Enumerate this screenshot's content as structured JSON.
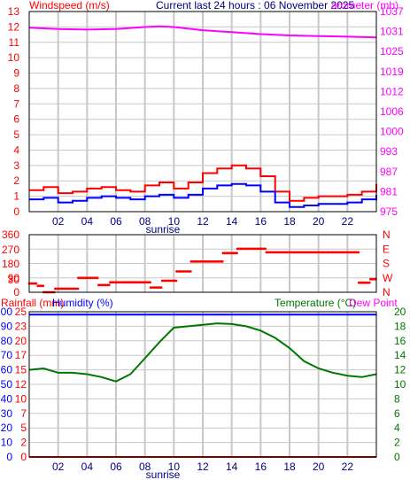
{
  "header": {
    "windspeed_label": "Windspeed (m/s)",
    "title": "Current last 24 hours : 06 November 2025",
    "barometer_label": "arometer (mb)"
  },
  "labels": {
    "sunrise": "sunrise",
    "rainfall": "Rainfall (mm)",
    "humidity": "Humidity (%)",
    "temperature": "Temperature (°C)",
    "dew_point": "Dew Point"
  },
  "colors": {
    "windspeed": "#ff0000",
    "gust": "#ff0000",
    "wind_avg": "#0000ff",
    "barometer": "#ff00ff",
    "direction": "#ff0000",
    "humidity": "#0000ff",
    "rainfall": "#ff0000",
    "temperature": "#007700",
    "grid": "#c8c8c8",
    "frame": "#000000"
  },
  "chart_data": [
    {
      "type": "line",
      "xlabel": "sunrise",
      "x_ticks": [
        "02",
        "04",
        "06",
        "08",
        "10",
        "12",
        "14",
        "16",
        "18",
        "20",
        "22"
      ],
      "y_left": {
        "label": "Windspeed (m/s)",
        "ylim": [
          0,
          13
        ],
        "ticks": [
          "0",
          "1",
          "2",
          "3",
          "4",
          "5",
          "6",
          "7",
          "8",
          "9",
          "10",
          "11",
          "12",
          "13"
        ]
      },
      "y_right": {
        "label": "arometer (mb)",
        "ylim": [
          975,
          1037
        ],
        "ticks": [
          "975",
          "981",
          "987",
          "993",
          "1000",
          "1006",
          "1012",
          "1019",
          "1025",
          "1031",
          "1037"
        ]
      },
      "grid": true,
      "series": [
        {
          "name": "Windspeed",
          "axis": "left",
          "color": "#ff0000",
          "hours": [
            0,
            1,
            2,
            3,
            4,
            5,
            6,
            7,
            8,
            9,
            10,
            11,
            12,
            13,
            14,
            15,
            16,
            17,
            18,
            19,
            20,
            21,
            22,
            23,
            24
          ],
          "values": [
            1.4,
            1.6,
            1.2,
            1.3,
            1.5,
            1.6,
            1.4,
            1.3,
            1.7,
            1.9,
            1.5,
            1.9,
            2.5,
            2.8,
            3.0,
            2.8,
            2.3,
            1.3,
            0.7,
            0.9,
            1.0,
            1.0,
            1.1,
            1.3,
            1.8
          ]
        },
        {
          "name": "Wind average",
          "axis": "left",
          "color": "#0000ff",
          "hours": [
            0,
            1,
            2,
            3,
            4,
            5,
            6,
            7,
            8,
            9,
            10,
            11,
            12,
            13,
            14,
            15,
            16,
            17,
            18,
            19,
            20,
            21,
            22,
            23,
            24
          ],
          "values": [
            0.8,
            0.9,
            0.6,
            0.7,
            0.9,
            1.0,
            0.9,
            0.8,
            1.0,
            1.1,
            0.9,
            1.1,
            1.5,
            1.7,
            1.8,
            1.7,
            1.3,
            0.6,
            0.3,
            0.4,
            0.5,
            0.5,
            0.6,
            0.8,
            1.1
          ]
        },
        {
          "name": "Barometer",
          "axis": "right",
          "color": "#ff00ff",
          "hours": [
            0,
            2,
            4,
            6,
            8,
            9,
            10,
            12,
            14,
            16,
            18,
            20,
            22,
            24
          ],
          "values": [
            1032,
            1031.6,
            1031.4,
            1031.6,
            1032.2,
            1032.4,
            1032.2,
            1031.2,
            1030.6,
            1030.0,
            1029.6,
            1029.4,
            1029.2,
            1029.0
          ]
        }
      ]
    },
    {
      "type": "scatter",
      "y_left": {
        "ylim": [
          0,
          360
        ],
        "ticks": [
          "0",
          "30",
          "90",
          "180",
          "270",
          "360"
        ]
      },
      "y_right": {
        "ticks": [
          "N",
          "E",
          "S",
          "W",
          "N"
        ]
      },
      "grid": true,
      "series": [
        {
          "name": "Wind direction",
          "color": "#ff0000",
          "segments": [
            {
              "from": 0.0,
              "to": 0.6,
              "value": 55
            },
            {
              "from": 0.6,
              "to": 1.0,
              "value": 40
            },
            {
              "from": 1.0,
              "to": 1.8,
              "value": 0
            },
            {
              "from": 1.8,
              "to": 3.4,
              "value": 22
            },
            {
              "from": 3.4,
              "to": 4.8,
              "value": 90
            },
            {
              "from": 4.8,
              "to": 5.6,
              "value": 45
            },
            {
              "from": 5.6,
              "to": 8.4,
              "value": 62
            },
            {
              "from": 8.4,
              "to": 9.2,
              "value": 30
            },
            {
              "from": 9.2,
              "to": 10.2,
              "value": 72
            },
            {
              "from": 10.2,
              "to": 11.2,
              "value": 130
            },
            {
              "from": 11.2,
              "to": 13.4,
              "value": 192
            },
            {
              "from": 13.4,
              "to": 14.4,
              "value": 245
            },
            {
              "from": 14.4,
              "to": 16.4,
              "value": 272
            },
            {
              "from": 16.4,
              "to": 22.8,
              "value": 250
            },
            {
              "from": 22.8,
              "to": 23.6,
              "value": 60
            },
            {
              "from": 23.6,
              "to": 24.0,
              "value": 82
            }
          ]
        }
      ]
    },
    {
      "type": "line",
      "xlabel": "sunrise",
      "x_ticks": [
        "02",
        "04",
        "06",
        "08",
        "10",
        "12",
        "14",
        "16",
        "18",
        "20",
        "22"
      ],
      "y_left": {
        "label": "Rainfall (mm)",
        "ylim": [
          0,
          25
        ],
        "ticks": [
          "0",
          "2",
          "5",
          "7",
          "10",
          "12",
          "15",
          "17",
          "20",
          "23",
          "25"
        ]
      },
      "y_left2": {
        "label": "Humidity (%)",
        "ylim": [
          0,
          100
        ],
        "ticks": [
          "0",
          "10",
          "20",
          "30",
          "40",
          "50",
          "60",
          "70",
          "80",
          "90",
          "100"
        ]
      },
      "y_right": {
        "label": "Temperature (°C)",
        "ylim": [
          0,
          20
        ],
        "ticks": [
          "0",
          "2",
          "4",
          "6",
          "8",
          "10",
          "12",
          "14",
          "16",
          "18",
          "20"
        ]
      },
      "grid": true,
      "series": [
        {
          "name": "Temperature",
          "axis": "right",
          "color": "#007700",
          "hours": [
            0,
            1,
            2,
            3,
            4,
            5,
            6,
            7,
            8,
            9,
            10,
            11,
            12,
            13,
            14,
            15,
            16,
            17,
            18,
            19,
            20,
            21,
            22,
            23,
            24
          ],
          "values": [
            12.0,
            12.2,
            11.6,
            11.6,
            11.4,
            11.0,
            10.4,
            11.4,
            13.6,
            15.8,
            17.8,
            18.0,
            18.2,
            18.4,
            18.3,
            18.0,
            17.4,
            16.4,
            15.0,
            13.2,
            12.2,
            11.6,
            11.2,
            11.0,
            11.4
          ]
        },
        {
          "name": "Humidity",
          "axis": "left2",
          "color": "#0000ff",
          "hours": [
            0,
            24
          ],
          "values": [
            98,
            98
          ]
        },
        {
          "name": "Rainfall",
          "axis": "left",
          "color": "#ff0000",
          "hours": [
            0,
            24
          ],
          "values": [
            0,
            0
          ]
        }
      ]
    }
  ]
}
